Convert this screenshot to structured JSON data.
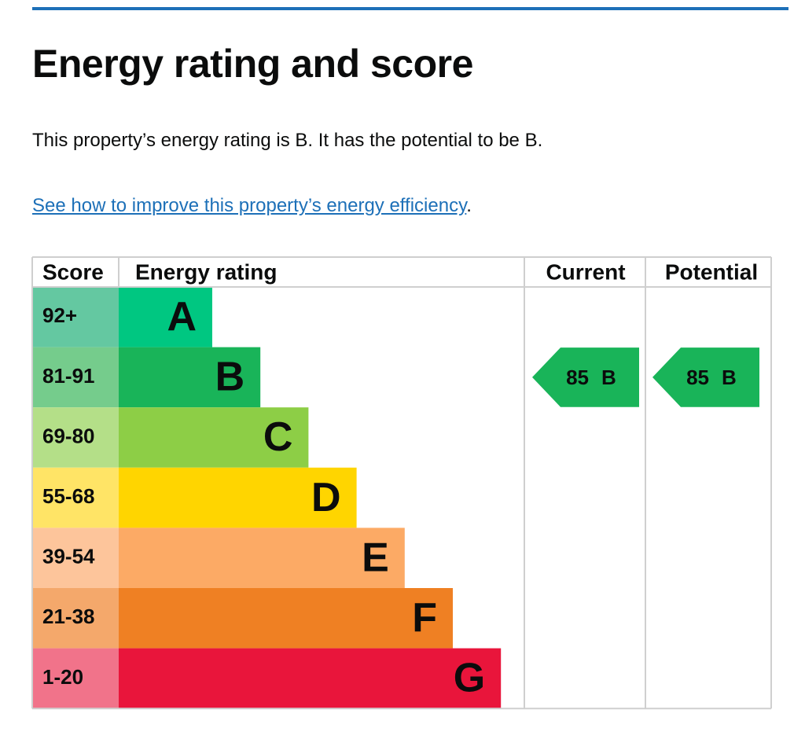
{
  "heading": "Energy rating and score",
  "summary": "This property’s energy rating is B. It has the potential to be B.",
  "link": {
    "text": "See how to improve this property’s energy efficiency",
    "suffix": "."
  },
  "table": {
    "headers": [
      "Score",
      "Energy rating",
      "Current",
      "Potential"
    ],
    "bands": [
      {
        "score": "92+",
        "rating": "A",
        "color": "#00c781",
        "score_color": "#64c8a1"
      },
      {
        "score": "81-91",
        "rating": "B",
        "color": "#19b459",
        "score_color": "#75cc8c"
      },
      {
        "score": "69-80",
        "rating": "C",
        "color": "#8dce46",
        "score_color": "#b4df88"
      },
      {
        "score": "55-68",
        "rating": "D",
        "color": "#ffd500",
        "score_color": "#ffe466"
      },
      {
        "score": "39-54",
        "rating": "E",
        "color": "#fcaa65",
        "score_color": "#fdc59b"
      },
      {
        "score": "21-38",
        "rating": "F",
        "color": "#ef8023",
        "score_color": "#f4a86b"
      },
      {
        "score": "1-20",
        "rating": "G",
        "color": "#e9153b",
        "score_color": "#f1738a"
      }
    ],
    "current": {
      "score": 85,
      "rating": "B"
    },
    "potential": {
      "score": 85,
      "rating": "B"
    }
  }
}
